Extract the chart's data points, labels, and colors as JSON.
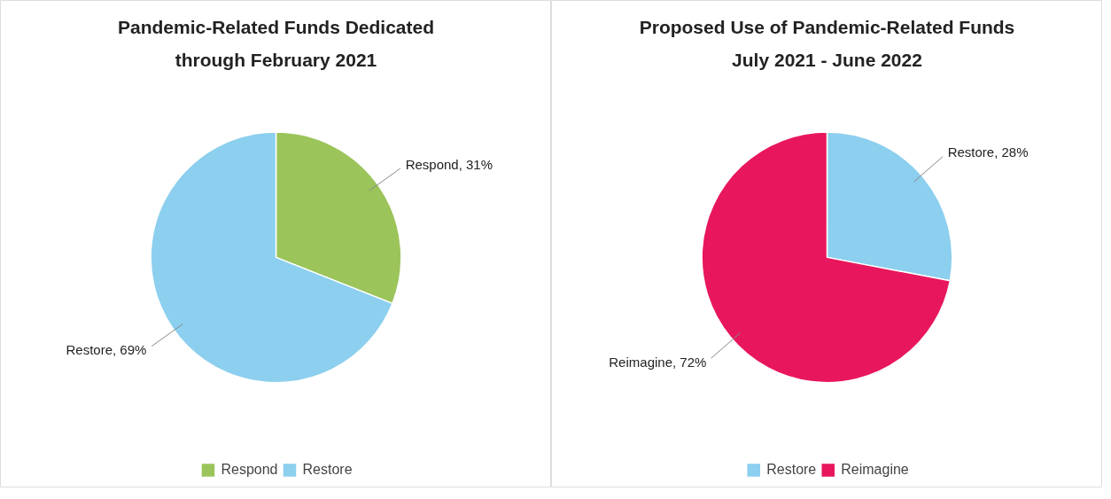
{
  "chart_data": [
    {
      "type": "pie",
      "title": "Pandemic-Related Funds Dedicated\nthrough February 2021",
      "categories": [
        "Respond",
        "Restore"
      ],
      "values": [
        31,
        69
      ],
      "colors": [
        "#9bc45a",
        "#8ccfee"
      ],
      "value_labels": [
        "Respond, 31%",
        "Restore, 69%"
      ],
      "legend": "bottom"
    },
    {
      "type": "pie",
      "title": "Proposed Use of Pandemic-Related Funds\nJuly 2021 - June 2022",
      "categories": [
        "Restore",
        "Reimagine"
      ],
      "values": [
        28,
        72
      ],
      "colors": [
        "#8ccfee",
        "#e8175d"
      ],
      "value_labels": [
        "Restore, 28%",
        "Reimagine, 72%"
      ],
      "legend": "bottom"
    }
  ]
}
